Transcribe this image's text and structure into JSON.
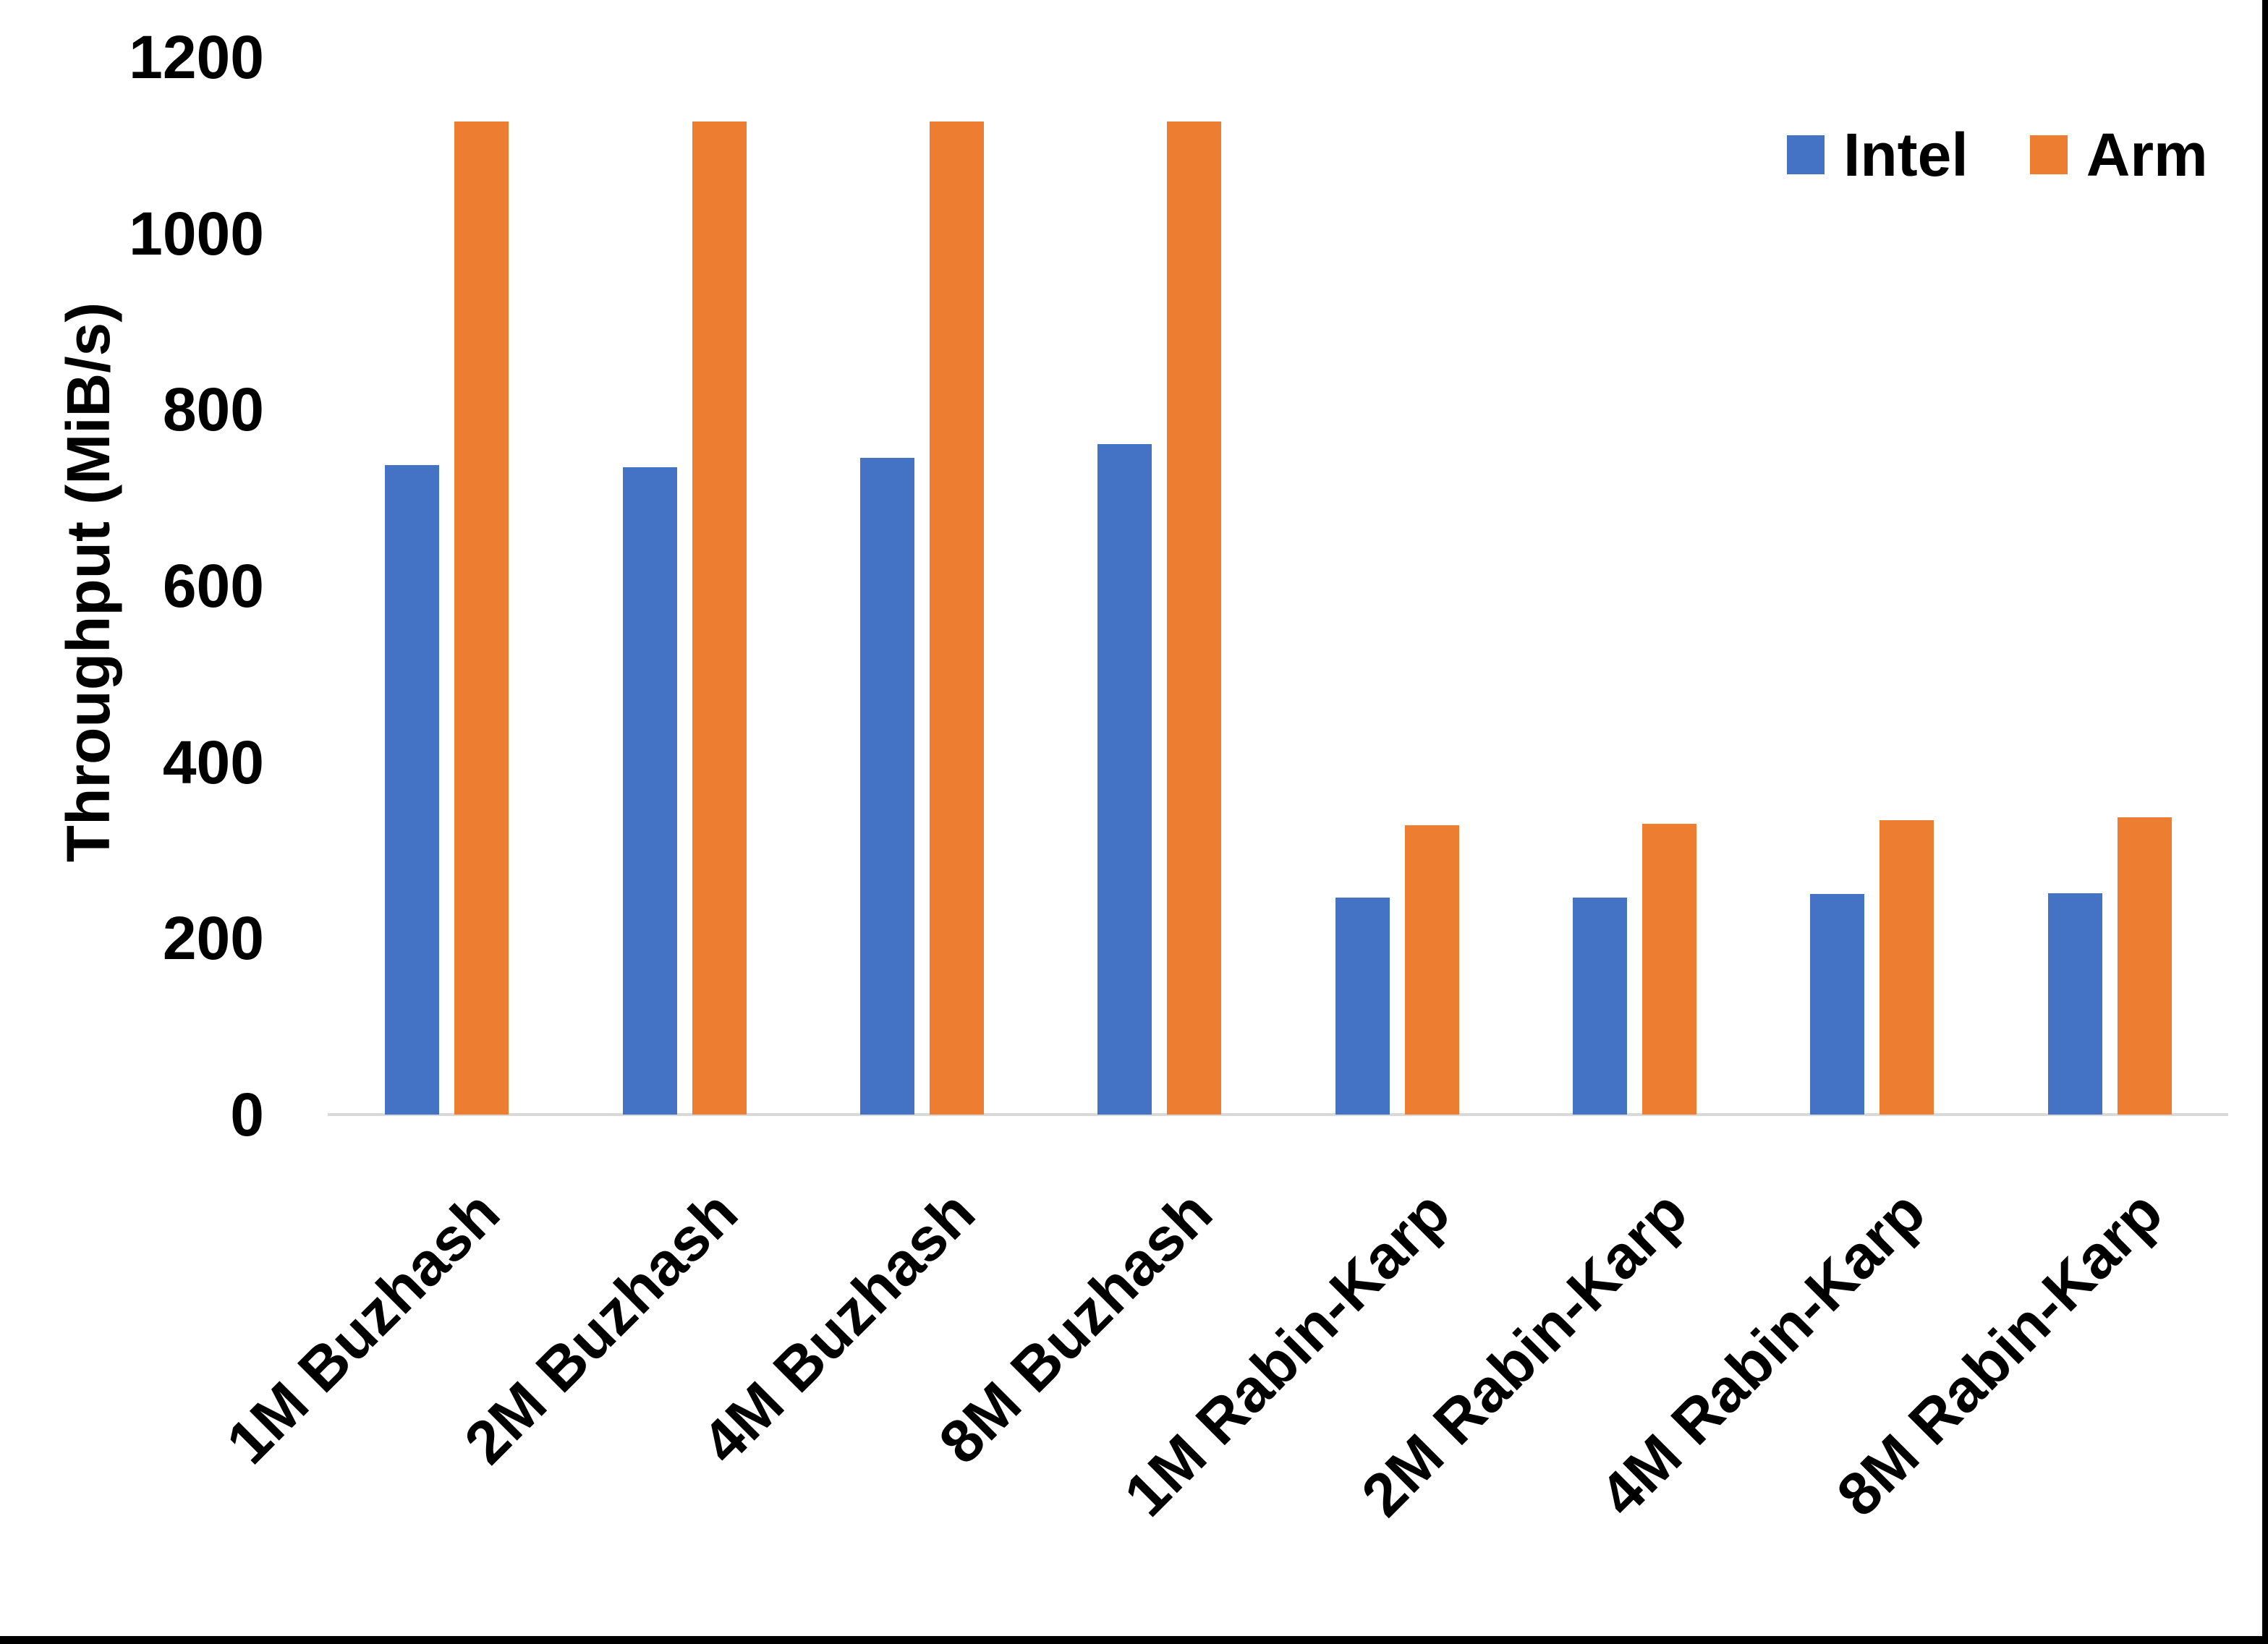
{
  "chart_data": {
    "type": "bar",
    "title": "",
    "xlabel": "",
    "ylabel": "Throughput (MiB/s)",
    "ylim": [
      0,
      1200
    ],
    "yticks": [
      0,
      200,
      400,
      600,
      800,
      1000,
      1200
    ],
    "grid": false,
    "legend_position": "top-right",
    "background": "#FFFFFF",
    "axis_line_color": "#D9D9D9",
    "text_color": "#000000",
    "categories": [
      "1M Buzhash",
      "2M Buzhash",
      "4M Buzhash",
      "8M Buzhash",
      "1M Rabin-Karp",
      "2M Rabin-Karp",
      "4M Rabin-Karp",
      "8M Rabin-Karp"
    ],
    "series": [
      {
        "name": "Intel",
        "color": "#4472C4",
        "values": [
          737,
          735,
          745,
          761,
          246,
          246,
          250,
          251
        ]
      },
      {
        "name": "Arm",
        "color": "#ED7D31",
        "values": [
          1127,
          1127,
          1127,
          1127,
          328,
          330,
          334,
          337
        ]
      }
    ]
  },
  "frame": {
    "right_border_color": "#000000",
    "bottom_border_color": "#000000"
  }
}
